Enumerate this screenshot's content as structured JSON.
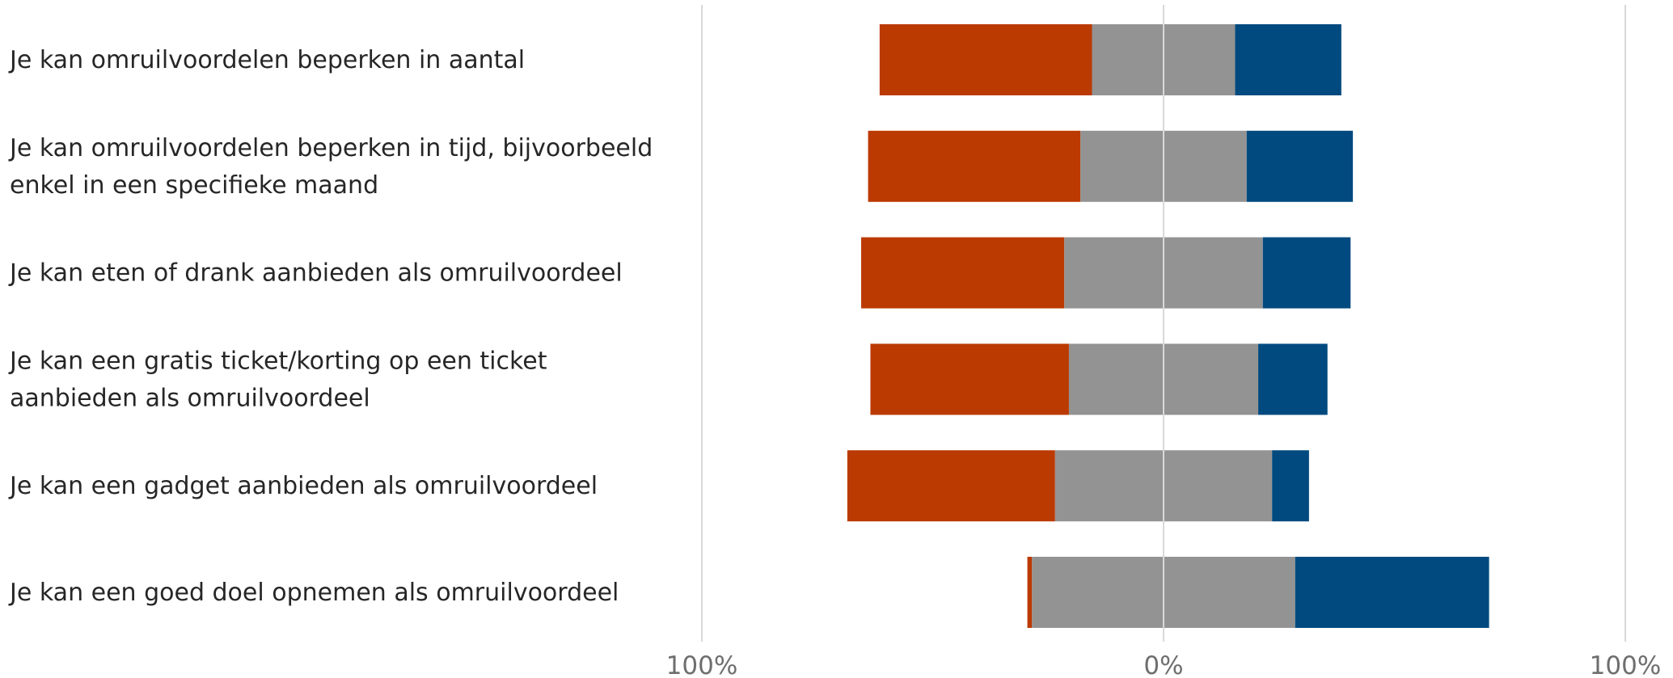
{
  "chart_data": {
    "type": "bar",
    "orientation": "horizontal",
    "stacked": "diverging",
    "categories": [
      [
        "Je kan omruilvoordelen beperken in aantal"
      ],
      [
        "Je kan omruilvoordelen beperken in tijd, bijvoorbeeld",
        "enkel in een specifieke maand"
      ],
      [
        "Je kan eten of drank aanbieden als omruilvoordeel"
      ],
      [
        "Je kan een gratis ticket/korting op een ticket",
        "aanbieden als omruilvoordeel"
      ],
      [
        "Je kan een gadget aanbieden als omruilvoordeel"
      ],
      [
        "Je kan een goed doel opnemen als omruilvoordeel"
      ]
    ],
    "series": [
      {
        "values": [
          46,
          46,
          44,
          43,
          45,
          1
        ],
        "color": "#BB3A02",
        "side": "negative"
      },
      {
        "values": [
          31,
          36,
          43,
          41,
          47,
          57
        ],
        "color": "#939393",
        "side": "neutral"
      },
      {
        "values": [
          23,
          23,
          19,
          15,
          8,
          42
        ],
        "color": "#014A7F",
        "side": "positive"
      }
    ],
    "xlim": [
      -100,
      100
    ],
    "tick_labels": [
      "100%",
      "0%",
      "100%"
    ],
    "grid": true,
    "legend": "none"
  }
}
